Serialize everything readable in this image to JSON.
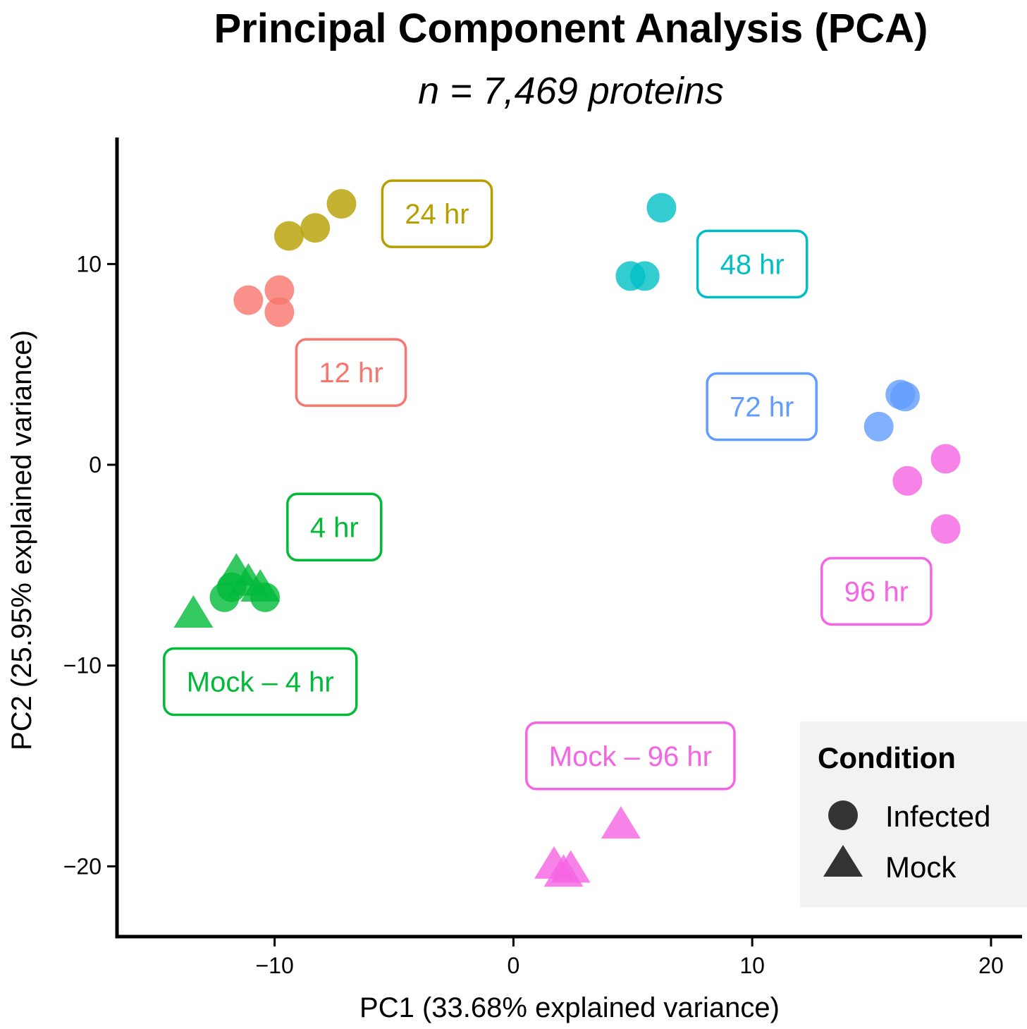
{
  "chart_data": {
    "type": "scatter",
    "title": "Principal Component Analysis (PCA)",
    "subtitle": "n = 7,469 proteins",
    "xlabel": "PC1 (33.68% explained variance)",
    "ylabel": "PC2 (25.95% explained variance)",
    "xlim": [
      -16.6,
      21.3
    ],
    "ylim": [
      -23.5,
      16.3
    ],
    "xticks": [
      {
        "value": -10,
        "label": "−10"
      },
      {
        "value": 0,
        "label": "0"
      },
      {
        "value": 10,
        "label": "10"
      },
      {
        "value": 20,
        "label": "20"
      }
    ],
    "yticks": [
      {
        "value": -20,
        "label": "−20"
      },
      {
        "value": -10,
        "label": "−10"
      },
      {
        "value": 0,
        "label": "0"
      },
      {
        "value": 10,
        "label": "10"
      }
    ],
    "grid": false,
    "legend": {
      "title": "Condition",
      "position": "right",
      "entries": [
        {
          "label": "Infected",
          "shape": "circle",
          "color": "#333333"
        },
        {
          "label": "Mock",
          "shape": "triangle",
          "color": "#333333"
        }
      ]
    },
    "groups": [
      {
        "label": "4 hr",
        "color": "#00BA38",
        "shape": "circle",
        "label_pos": [
          -7.5,
          -3.1
        ],
        "points": [
          [
            -12.1,
            -6.6
          ],
          [
            -11.8,
            -6.1
          ],
          [
            -10.4,
            -6.6
          ]
        ]
      },
      {
        "label": "12 hr",
        "color": "#F8766D",
        "shape": "circle",
        "label_pos": [
          -6.8,
          4.6
        ],
        "points": [
          [
            -11.1,
            8.2
          ],
          [
            -9.8,
            8.7
          ],
          [
            -9.8,
            7.6
          ]
        ]
      },
      {
        "label": "24 hr",
        "color": "#B79F00",
        "shape": "circle",
        "label_pos": [
          -3.2,
          12.5
        ],
        "points": [
          [
            -9.4,
            11.4
          ],
          [
            -8.3,
            11.8
          ],
          [
            -7.2,
            13.0
          ]
        ]
      },
      {
        "label": "48 hr",
        "color": "#00BFC4",
        "shape": "circle",
        "label_pos": [
          10.0,
          10.0
        ],
        "points": [
          [
            4.9,
            9.4
          ],
          [
            5.5,
            9.4
          ],
          [
            6.2,
            12.8
          ]
        ]
      },
      {
        "label": "72 hr",
        "color": "#619CFF",
        "shape": "circle",
        "label_pos": [
          10.4,
          2.9
        ],
        "points": [
          [
            15.3,
            1.9
          ],
          [
            16.2,
            3.5
          ],
          [
            16.4,
            3.4
          ]
        ]
      },
      {
        "label": "96 hr",
        "color": "#F564E3",
        "shape": "circle",
        "label_pos": [
          15.2,
          -6.3
        ],
        "points": [
          [
            16.5,
            -0.8
          ],
          [
            18.1,
            0.3
          ],
          [
            18.1,
            -3.2
          ]
        ]
      },
      {
        "label": "Mock – 4 hr",
        "color": "#00BA38",
        "shape": "triangle",
        "label_pos": [
          -10.6,
          -10.8
        ],
        "points": [
          [
            -13.4,
            -7.5
          ],
          [
            -11.6,
            -5.4
          ],
          [
            -11.1,
            -5.9
          ],
          [
            -10.6,
            -6.2
          ]
        ]
      },
      {
        "label": "Mock – 96 hr",
        "color": "#F564E3",
        "shape": "triangle",
        "label_pos": [
          4.9,
          -14.5
        ],
        "points": [
          [
            1.7,
            -20.0
          ],
          [
            2.1,
            -20.4
          ],
          [
            2.4,
            -20.2
          ],
          [
            4.5,
            -18.0
          ]
        ]
      }
    ]
  }
}
